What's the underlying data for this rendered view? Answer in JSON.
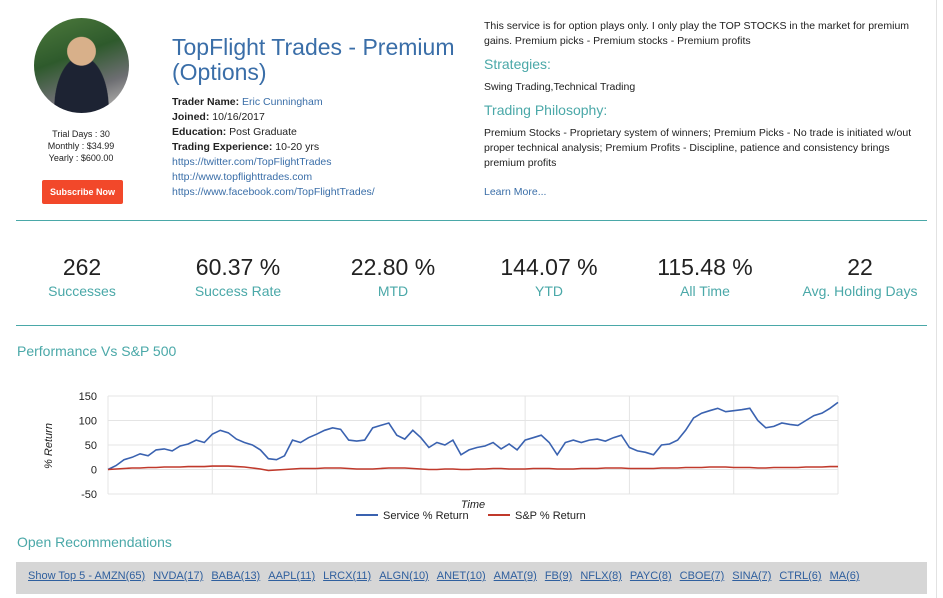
{
  "profile": {
    "trial_days": "Trial Days : 30",
    "monthly": "Monthly : $34.99",
    "yearly": "Yearly : $600.00",
    "subscribe_label": "Subscribe Now"
  },
  "service": {
    "title": "TopFlight Trades - Premium (Options)",
    "trader_name_label": "Trader Name:",
    "trader_name": "Eric Cunningham",
    "joined_label": "Joined:",
    "joined": "10/16/2017",
    "education_label": "Education:",
    "education": "Post Graduate",
    "experience_label": "Trading Experience:",
    "experience": "10-20 yrs",
    "links": [
      "https://twitter.com/TopFlightTrades",
      "http://www.topflighttrades.com",
      "https://www.facebook.com/TopFlightTrades/"
    ]
  },
  "about": {
    "description": "This service is for option plays only. I only play the TOP STOCKS in the market for premium gains. Premium picks - Premium stocks - Premium profits",
    "strategies_heading": "Strategies:",
    "strategies": "Swing Trading,Technical Trading",
    "philosophy_heading": "Trading Philosophy:",
    "philosophy": "Premium Stocks - Proprietary system of winners; Premium Picks - No trade is initiated w/out proper technical analysis; Premium Profits - Discipline, patience and consistency brings premium profits",
    "learn_more": "Learn More..."
  },
  "stats": [
    {
      "value": "262",
      "label": "Successes"
    },
    {
      "value": "60.37 %",
      "label": "Success Rate"
    },
    {
      "value": "22.80 %",
      "label": "MTD"
    },
    {
      "value": "144.07 %",
      "label": "YTD"
    },
    {
      "value": "115.48 %",
      "label": "All Time"
    },
    {
      "value": "22",
      "label": "Avg. Holding Days"
    }
  ],
  "performance_title": "Performance Vs S&P 500",
  "chart_data": {
    "type": "line",
    "title": "",
    "xlabel": "Time",
    "ylabel": "% Return",
    "ylim": [
      -50,
      150
    ],
    "yticks": [
      "150",
      "100",
      "50",
      "0",
      "-50"
    ],
    "grid": true,
    "legend_position": "bottom",
    "series": [
      {
        "name": "Service % Return",
        "color": "#3a62b0",
        "values": [
          0,
          8,
          20,
          25,
          32,
          28,
          40,
          42,
          38,
          48,
          52,
          60,
          55,
          72,
          80,
          75,
          62,
          55,
          50,
          40,
          22,
          20,
          28,
          60,
          55,
          65,
          72,
          80,
          85,
          82,
          60,
          58,
          60,
          85,
          90,
          95,
          70,
          62,
          80,
          65,
          45,
          55,
          50,
          60,
          30,
          40,
          45,
          48,
          55,
          42,
          52,
          40,
          60,
          65,
          70,
          55,
          30,
          55,
          60,
          55,
          60,
          62,
          58,
          65,
          70,
          45,
          38,
          35,
          30,
          50,
          52,
          60,
          80,
          105,
          115,
          120,
          125,
          118,
          120,
          122,
          125,
          100,
          85,
          88,
          95,
          92,
          90,
          100,
          110,
          115,
          125,
          137
        ]
      },
      {
        "name": "S&P % Return",
        "color": "#c0392b",
        "values": [
          0,
          1,
          2,
          3,
          3,
          4,
          4,
          5,
          5,
          5,
          6,
          6,
          6,
          7,
          7,
          7,
          6,
          5,
          3,
          1,
          -2,
          -1,
          0,
          1,
          2,
          2,
          2,
          3,
          3,
          3,
          2,
          1,
          1,
          1,
          2,
          3,
          3,
          3,
          2,
          1,
          0,
          0,
          1,
          1,
          0,
          0,
          1,
          1,
          2,
          2,
          1,
          1,
          1,
          2,
          2,
          2,
          1,
          1,
          1,
          2,
          2,
          2,
          3,
          3,
          3,
          2,
          2,
          2,
          2,
          3,
          3,
          3,
          4,
          4,
          4,
          5,
          5,
          5,
          4,
          4,
          4,
          3,
          3,
          4,
          4,
          4,
          4,
          5,
          5,
          5,
          6,
          6
        ]
      }
    ]
  },
  "open_recs": {
    "title": "Open Recommendations",
    "items": [
      "Show Top 5 - AMZN(65)",
      "NVDA(17)",
      "BABA(13)",
      "AAPL(11)",
      "LRCX(11)",
      "ALGN(10)",
      "ANET(10)",
      "AMAT(9)",
      "FB(9)",
      "NFLX(8)",
      "PAYC(8)",
      "CBOE(7)",
      "SINA(7)",
      "CTRL(6)",
      "MA(6)"
    ]
  }
}
